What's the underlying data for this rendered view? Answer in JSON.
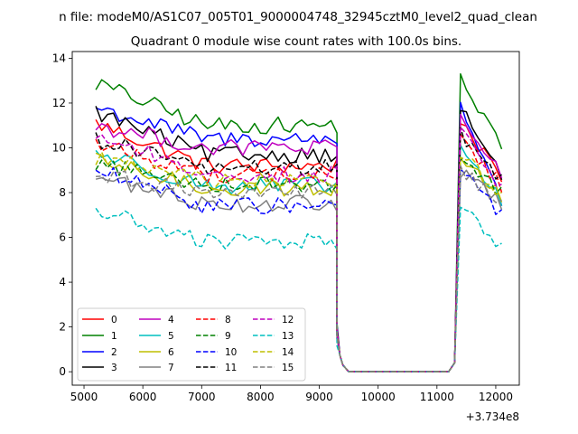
{
  "figure": {
    "suptitle": "n file: modeM0/AS1C07_005T01_9000004748_32945cztM0_level2_quad_clean"
  },
  "chart_data": {
    "type": "line",
    "title": "Quadrant 0 module wise count rates with 100.0s bins.",
    "xlabel": "",
    "ylabel": "",
    "offset_text": "+3.734e8",
    "xlim": [
      4800,
      12400
    ],
    "ylim": [
      -0.6,
      14.3
    ],
    "x_ticks": [
      5000,
      6000,
      7000,
      8000,
      9000,
      10000,
      11000,
      12000
    ],
    "x_tick_labels": [
      "5000",
      "6000",
      "7000",
      "8000",
      "9000",
      "10000",
      "11000",
      "12000"
    ],
    "y_ticks": [
      0,
      2,
      4,
      6,
      8,
      10,
      12,
      14
    ],
    "y_tick_labels": [
      "0",
      "2",
      "4",
      "6",
      "8",
      "10",
      "12",
      "14"
    ],
    "grid": false,
    "legend_position": "lower-left",
    "legend_columns": 4,
    "segments": {
      "first": {
        "x_start": 5200,
        "x_step": 100,
        "count": 42
      },
      "gap": {
        "x": [
          9400,
          9500,
          9600,
          9700,
          9800,
          9900,
          10000,
          10100,
          10200,
          10300,
          10400,
          10500,
          10600,
          10700,
          10800,
          10900,
          11000,
          11100,
          11200
        ]
      },
      "second": {
        "x_start": 11300,
        "x_step": 100,
        "count": 8
      }
    },
    "series": [
      {
        "name": "0",
        "color": "#ff0000",
        "dash": "solid",
        "level": 9.2,
        "start": 11.1,
        "end": 8.5
      },
      {
        "name": "1",
        "color": "#008000",
        "dash": "solid",
        "level": 11.0,
        "start": 12.9,
        "end": 10.0
      },
      {
        "name": "2",
        "color": "#0000ff",
        "dash": "solid",
        "level": 10.4,
        "start": 11.8,
        "end": 7.5
      },
      {
        "name": "3",
        "color": "#000000",
        "dash": "solid",
        "level": 9.7,
        "start": 11.6,
        "end": 8.7
      },
      {
        "name": "4",
        "color": "#bf00bf",
        "dash": "solid",
        "level": 10.0,
        "start": 11.0,
        "end": 8.8
      },
      {
        "name": "5",
        "color": "#00bfbf",
        "dash": "solid",
        "level": 8.3,
        "start": 9.8,
        "end": 7.6
      },
      {
        "name": "6",
        "color": "#bfbf00",
        "dash": "solid",
        "level": 8.2,
        "start": 9.4,
        "end": 7.8
      },
      {
        "name": "7",
        "color": "#808080",
        "dash": "solid",
        "level": 7.5,
        "start": 8.7,
        "end": 7.5
      },
      {
        "name": "8",
        "color": "#ff0000",
        "dash": "dashed",
        "level": 8.8,
        "start": 10.2,
        "end": 8.3
      },
      {
        "name": "9",
        "color": "#008000",
        "dash": "dashed",
        "level": 8.4,
        "start": 9.3,
        "end": 8.0
      },
      {
        "name": "10",
        "color": "#0000ff",
        "dash": "dashed",
        "level": 7.4,
        "start": 9.0,
        "end": 7.0
      },
      {
        "name": "11",
        "color": "#000000",
        "dash": "dashed",
        "level": 9.1,
        "start": 10.4,
        "end": 8.6
      },
      {
        "name": "12",
        "color": "#bf00bf",
        "dash": "dashed",
        "level": 8.8,
        "start": 10.6,
        "end": 8.2
      },
      {
        "name": "13",
        "color": "#00bfbf",
        "dash": "dashed",
        "level": 5.8,
        "start": 7.2,
        "end": 5.6
      },
      {
        "name": "14",
        "color": "#bfbf00",
        "dash": "dashed",
        "level": 8.5,
        "start": 9.6,
        "end": 7.9
      },
      {
        "name": "15",
        "color": "#808080",
        "dash": "dashed",
        "level": 8.0,
        "start": 8.8,
        "end": 7.6
      }
    ]
  }
}
